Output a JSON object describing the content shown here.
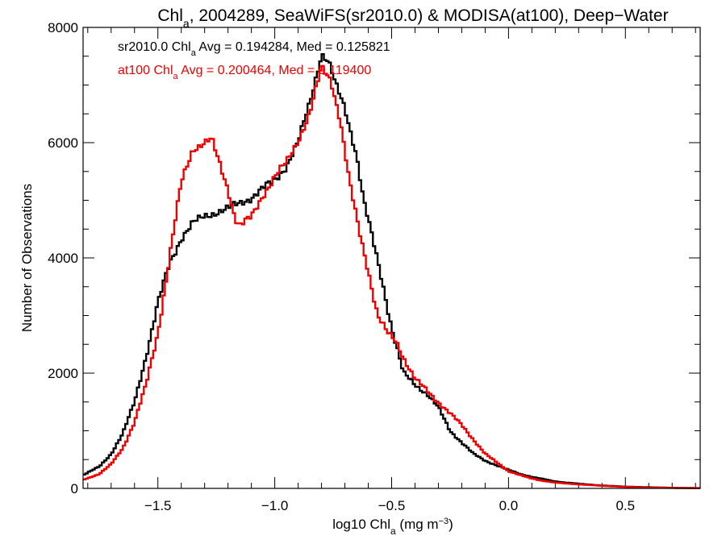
{
  "chart_data": {
    "type": "histogram-step",
    "title": {
      "prefix": "Chl",
      "prefix_sub": "a",
      "rest": ", 2004289, SeaWiFS(sr2010.0) & MODISA(at100), Deep−Water"
    },
    "xlabel": {
      "prefix": "log10 Chl",
      "sub": "a",
      "units": " (mg m",
      "sup": "−3",
      "close": ")"
    },
    "ylabel": "Number of Observations",
    "xlim": [
      -1.82,
      0.82
    ],
    "ylim": [
      0,
      8000
    ],
    "xticks": [
      -1.5,
      -1.0,
      -0.5,
      0.0,
      0.5
    ],
    "xtick_labels": [
      "−1.5",
      "−1.0",
      "−0.5",
      "0.0",
      "0.5"
    ],
    "yticks": [
      0,
      2000,
      4000,
      6000,
      8000
    ],
    "ytick_labels": [
      "0",
      "2000",
      "4000",
      "6000",
      "8000"
    ],
    "annotations": [
      {
        "part1": "sr2010.0 Chl",
        "sub": "a",
        "part2": " Avg = 0.194284, Med = 0.125821",
        "color": "#000000"
      },
      {
        "part1": "at100 Chl",
        "sub": "a",
        "part2": " Avg = 0.200464, Med = 0.119400",
        "color": "#ee0000"
      }
    ],
    "series": [
      {
        "name": "sr2010.0",
        "color": "#000000",
        "points": [
          [
            -1.82,
            230
          ],
          [
            -1.75,
            380
          ],
          [
            -1.7,
            600
          ],
          [
            -1.65,
            950
          ],
          [
            -1.6,
            1500
          ],
          [
            -1.55,
            2300
          ],
          [
            -1.5,
            3200
          ],
          [
            -1.45,
            3900
          ],
          [
            -1.4,
            4350
          ],
          [
            -1.35,
            4600
          ],
          [
            -1.3,
            4720
          ],
          [
            -1.25,
            4800
          ],
          [
            -1.2,
            4850
          ],
          [
            -1.15,
            4950
          ],
          [
            -1.1,
            5050
          ],
          [
            -1.05,
            5200
          ],
          [
            -1.0,
            5350
          ],
          [
            -0.95,
            5600
          ],
          [
            -0.9,
            6000
          ],
          [
            -0.85,
            6700
          ],
          [
            -0.8,
            7550
          ],
          [
            -0.77,
            7400
          ],
          [
            -0.74,
            7000
          ],
          [
            -0.7,
            6600
          ],
          [
            -0.65,
            5800
          ],
          [
            -0.62,
            5000
          ],
          [
            -0.58,
            4300
          ],
          [
            -0.54,
            3600
          ],
          [
            -0.5,
            2800
          ],
          [
            -0.45,
            2000
          ],
          [
            -0.4,
            1800
          ],
          [
            -0.35,
            1650
          ],
          [
            -0.3,
            1400
          ],
          [
            -0.25,
            1000
          ],
          [
            -0.2,
            800
          ],
          [
            -0.15,
            600
          ],
          [
            -0.1,
            480
          ],
          [
            -0.05,
            400
          ],
          [
            0.0,
            320
          ],
          [
            0.05,
            250
          ],
          [
            0.1,
            200
          ],
          [
            0.15,
            160
          ],
          [
            0.2,
            120
          ],
          [
            0.3,
            80
          ],
          [
            0.4,
            50
          ],
          [
            0.5,
            30
          ],
          [
            0.6,
            20
          ],
          [
            0.7,
            10
          ],
          [
            0.82,
            5
          ]
        ]
      },
      {
        "name": "at100",
        "color": "#ee0000",
        "points": [
          [
            -1.82,
            150
          ],
          [
            -1.75,
            250
          ],
          [
            -1.7,
            420
          ],
          [
            -1.65,
            700
          ],
          [
            -1.6,
            1150
          ],
          [
            -1.55,
            1800
          ],
          [
            -1.5,
            2700
          ],
          [
            -1.45,
            4000
          ],
          [
            -1.4,
            5300
          ],
          [
            -1.35,
            5900
          ],
          [
            -1.3,
            6000
          ],
          [
            -1.27,
            6050
          ],
          [
            -1.25,
            5800
          ],
          [
            -1.2,
            5200
          ],
          [
            -1.17,
            4700
          ],
          [
            -1.15,
            4550
          ],
          [
            -1.1,
            4700
          ],
          [
            -1.05,
            5100
          ],
          [
            -1.0,
            5400
          ],
          [
            -0.95,
            5650
          ],
          [
            -0.9,
            6050
          ],
          [
            -0.85,
            6500
          ],
          [
            -0.8,
            7300
          ],
          [
            -0.76,
            7100
          ],
          [
            -0.72,
            6400
          ],
          [
            -0.68,
            5300
          ],
          [
            -0.64,
            4500
          ],
          [
            -0.6,
            3800
          ],
          [
            -0.56,
            3000
          ],
          [
            -0.52,
            2700
          ],
          [
            -0.48,
            2550
          ],
          [
            -0.44,
            2200
          ],
          [
            -0.4,
            1900
          ],
          [
            -0.35,
            1700
          ],
          [
            -0.3,
            1500
          ],
          [
            -0.25,
            1300
          ],
          [
            -0.2,
            1100
          ],
          [
            -0.15,
            850
          ],
          [
            -0.1,
            600
          ],
          [
            -0.05,
            450
          ],
          [
            0.0,
            300
          ],
          [
            0.05,
            230
          ],
          [
            0.1,
            170
          ],
          [
            0.15,
            130
          ],
          [
            0.2,
            100
          ],
          [
            0.3,
            70
          ],
          [
            0.4,
            45
          ],
          [
            0.5,
            25
          ],
          [
            0.6,
            15
          ],
          [
            0.7,
            8
          ],
          [
            0.82,
            4
          ]
        ]
      }
    ]
  }
}
